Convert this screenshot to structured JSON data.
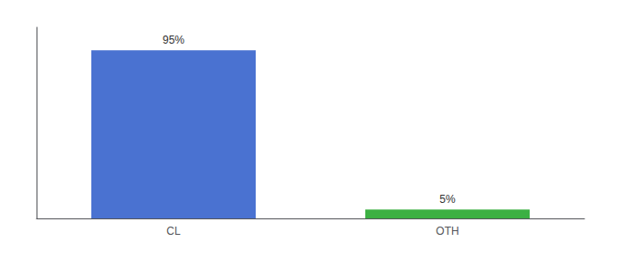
{
  "chart_data": {
    "type": "bar",
    "categories": [
      "CL",
      "OTH"
    ],
    "values": [
      95,
      5
    ],
    "value_labels": [
      "95%",
      "5%"
    ],
    "colors": [
      "#4a72d1",
      "#3cb043"
    ],
    "data_labels": true,
    "ylim": [
      0,
      108
    ],
    "tick_labels": "x",
    "grid": false
  }
}
